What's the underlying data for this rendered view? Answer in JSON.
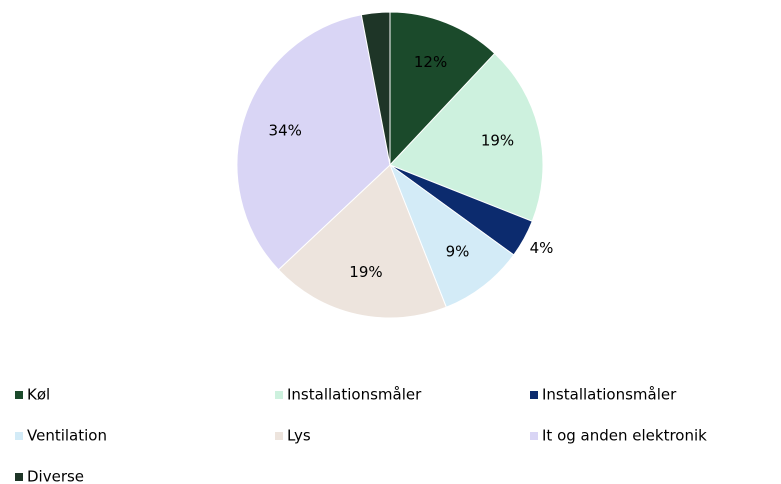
{
  "chart_data": {
    "type": "pie",
    "categories": [
      "Køl",
      "Installationsmåler",
      "Installationsmåler",
      "Ventilation",
      "Lys",
      "It og anden elektronik",
      "Diverse"
    ],
    "values": [
      12,
      19,
      4,
      9,
      19,
      34,
      3
    ],
    "value_labels": [
      "12%",
      "19%",
      "4%",
      "9%",
      "19%",
      "34%",
      null
    ],
    "colors": [
      "#1b4a2b",
      "#cdf1de",
      "#0c2b6e",
      "#d3ebf7",
      "#ede4dd",
      "#d9d5f5",
      "#1e3527"
    ]
  }
}
